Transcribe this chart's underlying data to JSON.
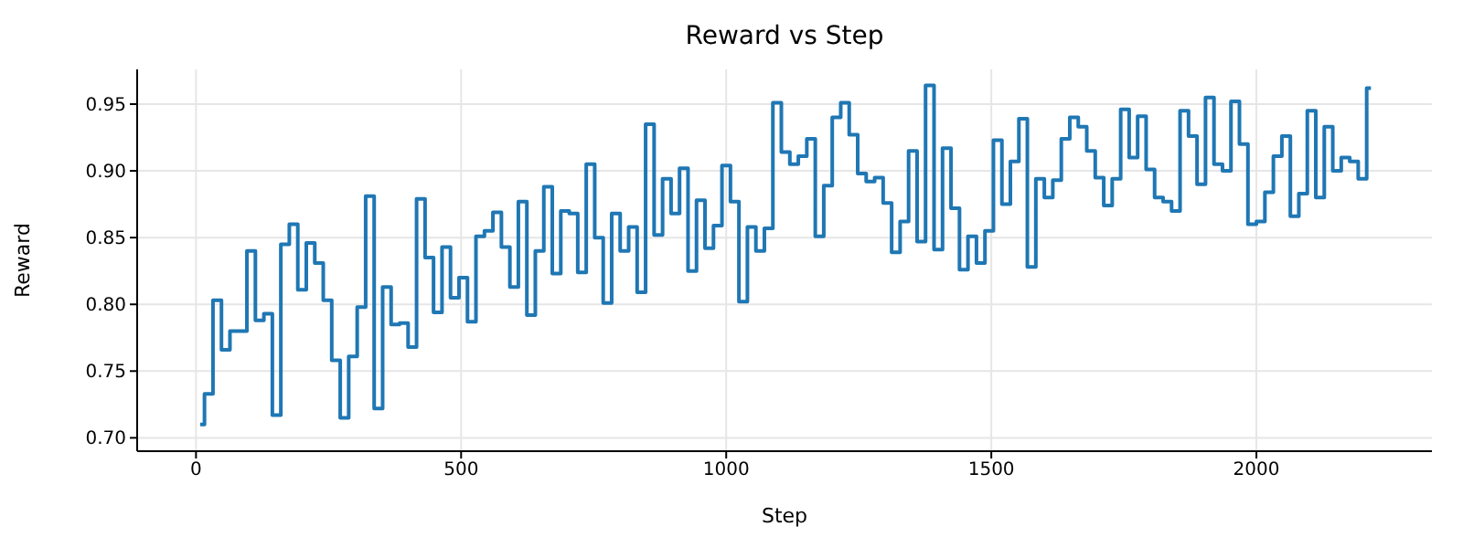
{
  "chart_data": {
    "type": "step",
    "title": "Reward vs Step",
    "xlabel": "Step",
    "ylabel": "Reward",
    "x": [
      8,
      24,
      40,
      56,
      72,
      88,
      104,
      120,
      136,
      152,
      168,
      184,
      200,
      216,
      232,
      248,
      264,
      280,
      296,
      312,
      328,
      344,
      360,
      376,
      392,
      408,
      424,
      440,
      456,
      472,
      488,
      504,
      520,
      536,
      552,
      568,
      584,
      600,
      616,
      632,
      648,
      664,
      680,
      696,
      712,
      728,
      744,
      760,
      776,
      792,
      808,
      824,
      840,
      856,
      872,
      888,
      904,
      920,
      936,
      952,
      968,
      984,
      1000,
      1016,
      1032,
      1048,
      1064,
      1080,
      1096,
      1112,
      1128,
      1144,
      1160,
      1176,
      1192,
      1208,
      1224,
      1240,
      1256,
      1272,
      1288,
      1304,
      1320,
      1336,
      1352,
      1368,
      1384,
      1400,
      1416,
      1432,
      1448,
      1464,
      1480,
      1496,
      1512,
      1528,
      1544,
      1560,
      1576,
      1592,
      1608,
      1624,
      1640,
      1656,
      1672,
      1688,
      1704,
      1720,
      1736,
      1752,
      1768,
      1784,
      1800,
      1816,
      1832,
      1848,
      1864,
      1880,
      1896,
      1912,
      1928,
      1944,
      1960,
      1976,
      1992,
      2008,
      2024,
      2040,
      2056,
      2072,
      2088,
      2104,
      2120,
      2136,
      2152,
      2168,
      2184,
      2200,
      2216
    ],
    "series": [
      {
        "color": "#1f77b4",
        "values": [
          0.71,
          0.733,
          0.803,
          0.766,
          0.78,
          0.78,
          0.84,
          0.788,
          0.793,
          0.717,
          0.845,
          0.86,
          0.811,
          0.846,
          0.831,
          0.803,
          0.758,
          0.715,
          0.761,
          0.798,
          0.881,
          0.722,
          0.813,
          0.785,
          0.786,
          0.768,
          0.879,
          0.835,
          0.794,
          0.843,
          0.805,
          0.82,
          0.787,
          0.851,
          0.855,
          0.869,
          0.843,
          0.813,
          0.877,
          0.792,
          0.84,
          0.888,
          0.823,
          0.87,
          0.868,
          0.824,
          0.905,
          0.85,
          0.801,
          0.868,
          0.84,
          0.858,
          0.809,
          0.935,
          0.852,
          0.894,
          0.868,
          0.902,
          0.825,
          0.878,
          0.842,
          0.859,
          0.904,
          0.877,
          0.802,
          0.858,
          0.84,
          0.857,
          0.951,
          0.914,
          0.905,
          0.911,
          0.924,
          0.851,
          0.889,
          0.94,
          0.951,
          0.927,
          0.898,
          0.892,
          0.895,
          0.876,
          0.839,
          0.862,
          0.915,
          0.847,
          0.964,
          0.841,
          0.917,
          0.872,
          0.826,
          0.851,
          0.831,
          0.855,
          0.923,
          0.875,
          0.907,
          0.939,
          0.828,
          0.894,
          0.88,
          0.893,
          0.924,
          0.94,
          0.933,
          0.915,
          0.895,
          0.874,
          0.894,
          0.946,
          0.91,
          0.941,
          0.901,
          0.88,
          0.877,
          0.87,
          0.945,
          0.926,
          0.89,
          0.955,
          0.905,
          0.9,
          0.952,
          0.92,
          0.86,
          0.862,
          0.884,
          0.911,
          0.926,
          0.866,
          0.883,
          0.945,
          0.88,
          0.933,
          0.9,
          0.91,
          0.907,
          0.894,
          0.962
        ]
      }
    ],
    "xlim": [
      -111,
      2331
    ],
    "xticks": [
      0,
      500,
      1000,
      1500,
      2000
    ],
    "ylim": [
      0.69,
      0.976
    ],
    "yticks": [
      {
        "value": 0.7,
        "label": "0.70"
      },
      {
        "value": 0.75,
        "label": "0.75"
      },
      {
        "value": 0.8,
        "label": "0.80"
      },
      {
        "value": 0.85,
        "label": "0.85"
      },
      {
        "value": 0.9,
        "label": "0.90"
      },
      {
        "value": 0.95,
        "label": "0.95"
      }
    ],
    "grid": true,
    "line_style": "solid",
    "marker": "none"
  }
}
